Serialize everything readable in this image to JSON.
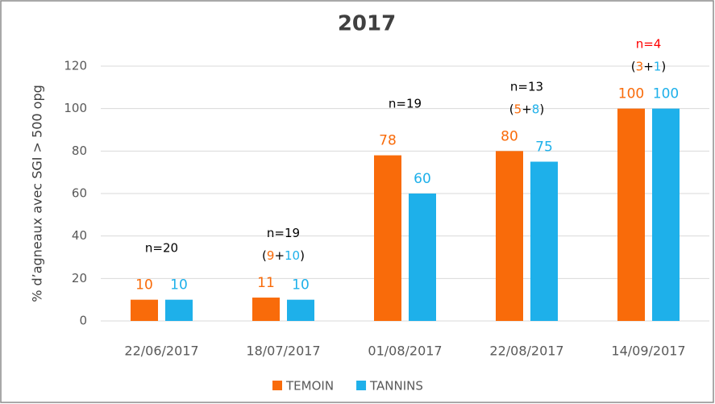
{
  "chart_data": {
    "type": "bar",
    "title": "2017",
    "y_label": "% d’agneaux avec SGI > 500 opg",
    "categories": [
      "22/06/2017",
      "18/07/2017",
      "01/08/2017",
      "22/08/2017",
      "14/09/2017"
    ],
    "series": [
      {
        "name": "TEMOIN",
        "color": "#f96b0a",
        "values": [
          10,
          11,
          78,
          80,
          100
        ]
      },
      {
        "name": "TANNINS",
        "color": "#1eb0ea",
        "values": [
          10,
          10,
          60,
          75,
          100
        ]
      }
    ],
    "ylim": [
      0,
      120
    ],
    "yticks": [
      0,
      20,
      40,
      60,
      80,
      100,
      120
    ],
    "grid": true,
    "legend": "bottom",
    "annotations": [
      {
        "lines": [
          [
            {
              "text": "n=20",
              "color": "#000000"
            }
          ]
        ]
      },
      {
        "lines": [
          [
            {
              "text": "n=19",
              "color": "#000000"
            }
          ],
          [
            {
              "text": "(",
              "color": "#000000"
            },
            {
              "text": "9",
              "color": "#f96b0a"
            },
            {
              "text": "+",
              "color": "#000000"
            },
            {
              "text": "10",
              "color": "#1eb0ea"
            },
            {
              "text": ")",
              "color": "#000000"
            }
          ]
        ]
      },
      {
        "lines": [
          [
            {
              "text": "n=19",
              "color": "#000000"
            }
          ]
        ]
      },
      {
        "lines": [
          [
            {
              "text": "n=13",
              "color": "#000000"
            }
          ],
          [
            {
              "text": "(",
              "color": "#000000"
            },
            {
              "text": "5",
              "color": "#f96b0a"
            },
            {
              "text": "+",
              "color": "#000000"
            },
            {
              "text": "8",
              "color": "#1eb0ea"
            },
            {
              "text": ")",
              "color": "#000000"
            }
          ]
        ]
      },
      {
        "lines": [
          [
            {
              "text": "n=4",
              "color": "#ff0000"
            }
          ],
          [
            {
              "text": "(",
              "color": "#000000"
            },
            {
              "text": "3",
              "color": "#f96b0a"
            },
            {
              "text": "+",
              "color": "#000000"
            },
            {
              "text": "1",
              "color": "#1eb0ea"
            },
            {
              "text": ")",
              "color": "#000000"
            }
          ]
        ]
      }
    ]
  }
}
